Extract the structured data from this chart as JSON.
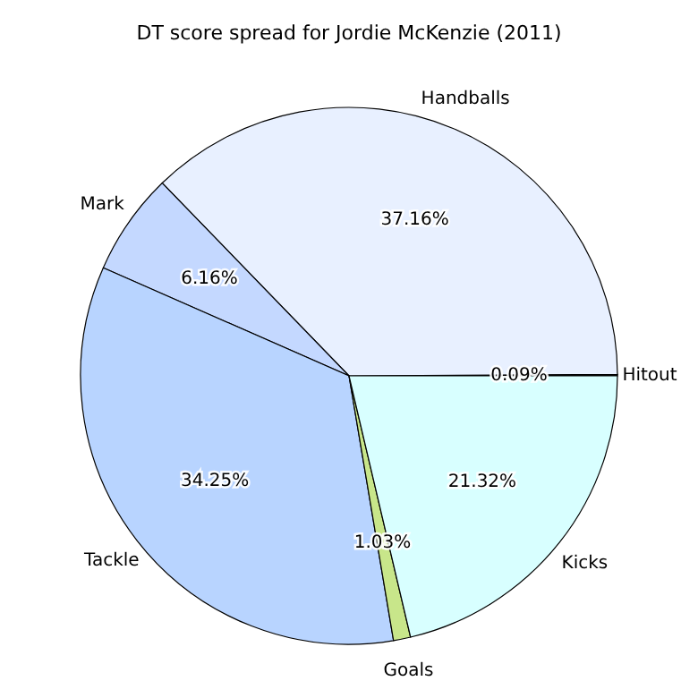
{
  "chart_data": {
    "type": "pie",
    "title": "DT score spread for Jordie McKenzie (2011)",
    "categories": [
      "Hitout",
      "Handballs",
      "Mark",
      "Tackle",
      "Goals",
      "Kicks"
    ],
    "values": [
      0.09,
      37.16,
      6.16,
      34.25,
      1.03,
      21.32
    ],
    "colors": [
      "#202020",
      "#e8f0ff",
      "#c4d8ff",
      "#b8d4ff",
      "#c8e68a",
      "#d8ffff"
    ],
    "value_labels": [
      "0.09%",
      "37.16%",
      "6.16%",
      "34.25%",
      "1.03%",
      "21.32%"
    ]
  }
}
